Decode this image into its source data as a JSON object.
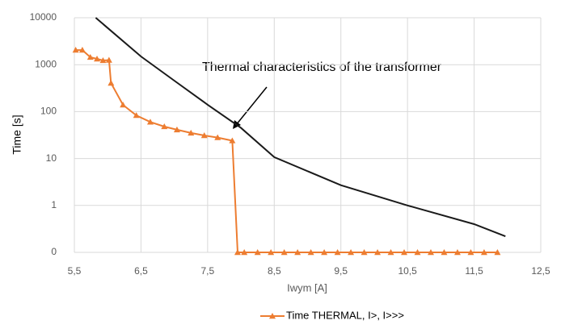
{
  "chart_data": {
    "type": "line",
    "yscale": "log",
    "grid": true,
    "x_label": "Iwym [A]",
    "y_label": "Time [s]",
    "annotation": "Thermal characteristics of the transformer",
    "xlim": [
      5.5,
      12.5
    ],
    "xticks": [
      {
        "value": 5.5,
        "label": "5,5"
      },
      {
        "value": 6.5,
        "label": "6,5"
      },
      {
        "value": 7.5,
        "label": "7,5"
      },
      {
        "value": 8.5,
        "label": "8,5"
      },
      {
        "value": 9.5,
        "label": "9,5"
      },
      {
        "value": 10.5,
        "label": "10,5"
      },
      {
        "value": 11.5,
        "label": "11,5"
      },
      {
        "value": 12.5,
        "label": "12,5"
      }
    ],
    "ylim": [
      0.1,
      10000
    ],
    "yticks": [
      {
        "value": 0.1,
        "label": "0"
      },
      1,
      10,
      100,
      1000,
      10000
    ],
    "series": [
      {
        "name": "Time THERMAL, I>, I>>>",
        "color": "#ed7d31",
        "marker": "triangle",
        "x": [
          5.52,
          5.62,
          5.74,
          5.84,
          5.93,
          6.02,
          6.05,
          6.23,
          6.43,
          6.64,
          6.85,
          7.04,
          7.25,
          7.45,
          7.65,
          7.87,
          7.95,
          8.05,
          8.25,
          8.45,
          8.65,
          8.85,
          9.05,
          9.25,
          9.45,
          9.65,
          9.85,
          10.05,
          10.25,
          10.45,
          10.65,
          10.85,
          11.05,
          11.25,
          11.45,
          11.65,
          11.85
        ],
        "values": [
          2050,
          2050,
          1440,
          1330,
          1230,
          1250,
          405,
          139,
          83,
          60,
          48,
          41,
          35,
          31,
          28,
          24,
          0.1,
          0.1,
          0.1,
          0.1,
          0.1,
          0.1,
          0.1,
          0.1,
          0.1,
          0.1,
          0.1,
          0.1,
          0.1,
          0.1,
          0.1,
          0.1,
          0.1,
          0.1,
          0.1,
          0.1,
          0.1
        ]
      },
      {
        "color": "#1a1a1a",
        "x": [
          5.82,
          6.5,
          7.0,
          7.5,
          8.0,
          8.5,
          9.5,
          10.5,
          11.5,
          11.97
        ],
        "values": [
          10000,
          1500,
          457,
          140,
          45,
          10.7,
          2.7,
          1,
          0.4,
          0.22
        ]
      }
    ]
  }
}
